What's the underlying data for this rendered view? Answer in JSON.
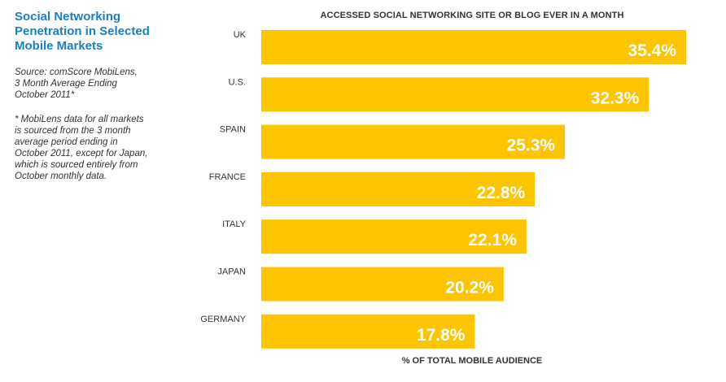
{
  "sidebar": {
    "title": "Social Networking\nPenetration in Selected\nMobile Markets",
    "source": "Source: comScore MobiLens,\n3 Month Average Ending\nOctober 2011*",
    "footnote": "* MobiLens data for all markets\nis sourced from the 3 month\naverage period ending in\nOctober 2011, except for Japan,\nwhich is sourced entirely from\nOctober monthly data."
  },
  "chart_data": {
    "type": "bar",
    "orientation": "horizontal",
    "title": "ACCESSED SOCIAL NETWORKING SITE OR BLOG EVER IN A MONTH",
    "xlabel": "% OF TOTAL MOBILE AUDIENCE",
    "categories": [
      "UK",
      "U.S.",
      "SPAIN",
      "FRANCE",
      "ITALY",
      "JAPAN",
      "GERMANY"
    ],
    "values": [
      35.4,
      32.3,
      25.3,
      22.8,
      22.1,
      20.2,
      17.8
    ],
    "value_labels": [
      "35.4%",
      "32.3%",
      "25.3%",
      "22.8%",
      "22.1%",
      "20.2%",
      "17.8%"
    ],
    "bar_color": "#fdc400",
    "value_label_color": "#ffffff",
    "grid": false,
    "legend": "none"
  }
}
